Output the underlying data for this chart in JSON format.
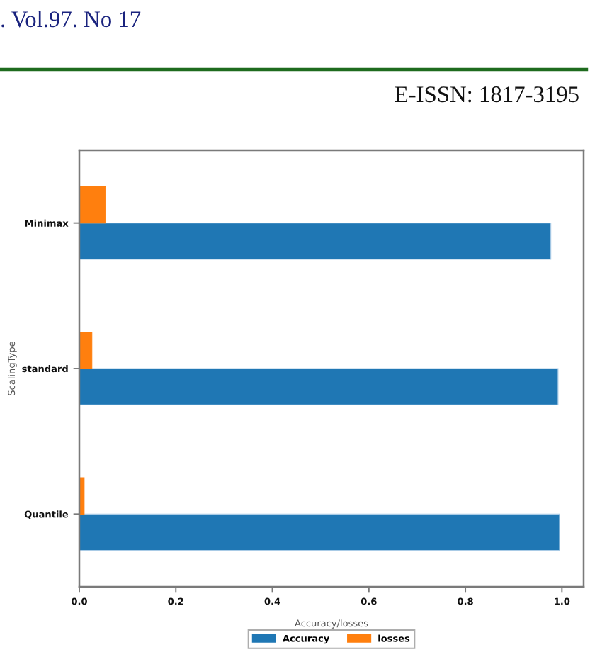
{
  "chart_data": {
    "type": "bar",
    "orientation": "horizontal",
    "categories": [
      "Minimax",
      "standard",
      "Quantile"
    ],
    "series": [
      {
        "name": "Accuracy",
        "color": "#1f77b4",
        "values": [
          0.977,
          0.992,
          0.995
        ]
      },
      {
        "name": "losses",
        "color": "#ff7f0e",
        "values": [
          0.054,
          0.026,
          0.01
        ]
      }
    ],
    "xlim": [
      0,
      1.045
    ],
    "xticks": [
      {
        "value": 0,
        "label": "0.0"
      },
      {
        "value": 0.2,
        "label": "0.2"
      },
      {
        "value": 0.4,
        "label": "0.4"
      },
      {
        "value": 0.6,
        "label": "0.6"
      },
      {
        "value": 0.8,
        "label": "0.8"
      },
      {
        "value": 1,
        "label": "1.0"
      }
    ],
    "xlabel": "Accuracy/losses",
    "ylabel": "ScalingType",
    "legend": "bottom",
    "grid": false,
    "annotations": [
      ". Vol.97. No 17",
      "E-ISSN: 1817-3195"
    ]
  }
}
